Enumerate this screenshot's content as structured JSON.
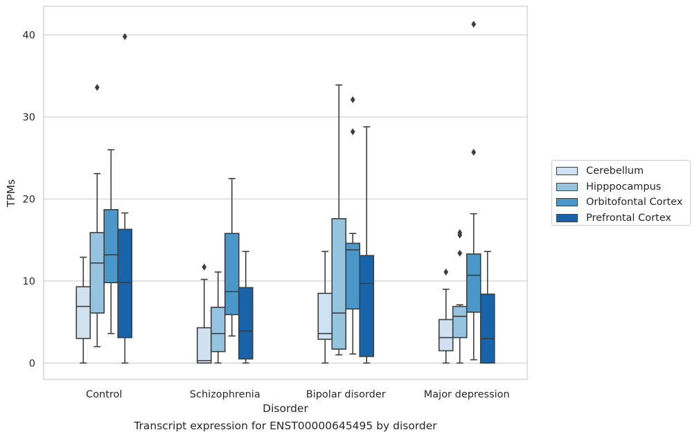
{
  "caption": "Transcript expression for ENST00000645495 by disorder",
  "chart_data": {
    "type": "box",
    "title": "",
    "xlabel": "Disorder",
    "ylabel": "TPMs",
    "ylim": [
      -2,
      43.5
    ],
    "yticks": [
      0,
      10,
      20,
      30,
      40
    ],
    "grid": "horizontal",
    "legend_position": "right",
    "categories": [
      "Control",
      "Schizophrenia",
      "Bipolar disorder",
      "Major depression"
    ],
    "series": [
      {
        "name": "Cerebellum",
        "color": "#d0e1f2",
        "boxes": [
          {
            "whisker_low": 0,
            "q1": 3.0,
            "median": 6.9,
            "q3": 9.3,
            "whisker_high": 12.9,
            "outliers": []
          },
          {
            "whisker_low": 0,
            "q1": 0.0,
            "median": 0.3,
            "q3": 4.3,
            "whisker_high": 10.2,
            "outliers": [
              11.7
            ]
          },
          {
            "whisker_low": 0,
            "q1": 2.9,
            "median": 3.6,
            "q3": 8.5,
            "whisker_high": 13.6,
            "outliers": []
          },
          {
            "whisker_low": 0,
            "q1": 1.5,
            "median": 3.1,
            "q3": 5.3,
            "whisker_high": 9.0,
            "outliers": [
              11.1
            ]
          }
        ]
      },
      {
        "name": "Hipppocampus",
        "color": "#94c4df",
        "boxes": [
          {
            "whisker_low": 2.0,
            "q1": 6.1,
            "median": 12.2,
            "q3": 15.9,
            "whisker_high": 23.1,
            "outliers": [
              33.6
            ]
          },
          {
            "whisker_low": 0,
            "q1": 1.4,
            "median": 3.6,
            "q3": 6.8,
            "whisker_high": 11.1,
            "outliers": []
          },
          {
            "whisker_low": 1.0,
            "q1": 1.7,
            "median": 6.1,
            "q3": 17.6,
            "whisker_high": 33.9,
            "outliers": []
          },
          {
            "whisker_low": 0,
            "q1": 3.1,
            "median": 5.7,
            "q3": 6.9,
            "whisker_high": 7.1,
            "outliers": [
              13.4,
              15.6,
              15.9
            ]
          }
        ]
      },
      {
        "name": "Orbitofontal Cortex",
        "color": "#4a98c9",
        "boxes": [
          {
            "whisker_low": 3.6,
            "q1": 9.8,
            "median": 13.2,
            "q3": 18.7,
            "whisker_high": 26.0,
            "outliers": []
          },
          {
            "whisker_low": 3.3,
            "q1": 5.9,
            "median": 8.7,
            "q3": 15.8,
            "whisker_high": 22.5,
            "outliers": []
          },
          {
            "whisker_low": 1.1,
            "q1": 6.6,
            "median": 13.8,
            "q3": 14.6,
            "whisker_high": 15.8,
            "outliers": [
              28.2,
              32.1
            ]
          },
          {
            "whisker_low": 0.4,
            "q1": 6.2,
            "median": 10.7,
            "q3": 13.3,
            "whisker_high": 18.2,
            "outliers": [
              25.7,
              41.3
            ]
          }
        ]
      },
      {
        "name": "Prefrontal Cortex",
        "color": "#1764ab",
        "boxes": [
          {
            "whisker_low": 0,
            "q1": 3.1,
            "median": 9.8,
            "q3": 16.3,
            "whisker_high": 18.3,
            "outliers": [
              39.8
            ]
          },
          {
            "whisker_low": 0,
            "q1": 0.5,
            "median": 3.9,
            "q3": 9.2,
            "whisker_high": 13.6,
            "outliers": []
          },
          {
            "whisker_low": 0,
            "q1": 0.8,
            "median": 9.7,
            "q3": 13.1,
            "whisker_high": 28.8,
            "outliers": []
          },
          {
            "whisker_low": 0,
            "q1": 0.0,
            "median": 3.0,
            "q3": 8.4,
            "whisker_high": 13.6,
            "outliers": []
          }
        ]
      }
    ]
  }
}
